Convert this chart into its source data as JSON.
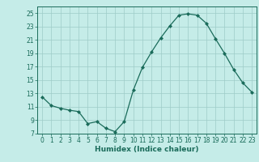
{
  "x": [
    0,
    1,
    2,
    3,
    4,
    5,
    6,
    7,
    8,
    9,
    10,
    11,
    12,
    13,
    14,
    15,
    16,
    17,
    18,
    19,
    20,
    21,
    22,
    23
  ],
  "y": [
    12.5,
    11.2,
    10.8,
    10.5,
    10.3,
    8.5,
    8.8,
    7.8,
    7.3,
    8.8,
    13.5,
    16.9,
    19.2,
    21.3,
    23.1,
    24.7,
    24.9,
    24.7,
    23.5,
    21.2,
    19.0,
    16.6,
    14.6,
    13.2
  ],
  "xlabel": "Humidex (Indice chaleur)",
  "xlim": [
    -0.5,
    23.5
  ],
  "ylim": [
    7,
    26
  ],
  "yticks": [
    7,
    9,
    11,
    13,
    15,
    17,
    19,
    21,
    23,
    25
  ],
  "xticks": [
    0,
    1,
    2,
    3,
    4,
    5,
    6,
    7,
    8,
    9,
    10,
    11,
    12,
    13,
    14,
    15,
    16,
    17,
    18,
    19,
    20,
    21,
    22,
    23
  ],
  "line_color": "#1a6b5a",
  "marker": "D",
  "marker_size": 2.0,
  "bg_color": "#c5ece8",
  "grid_color": "#9eccc8",
  "axis_fontsize": 5.5,
  "xlabel_fontsize": 6.5
}
